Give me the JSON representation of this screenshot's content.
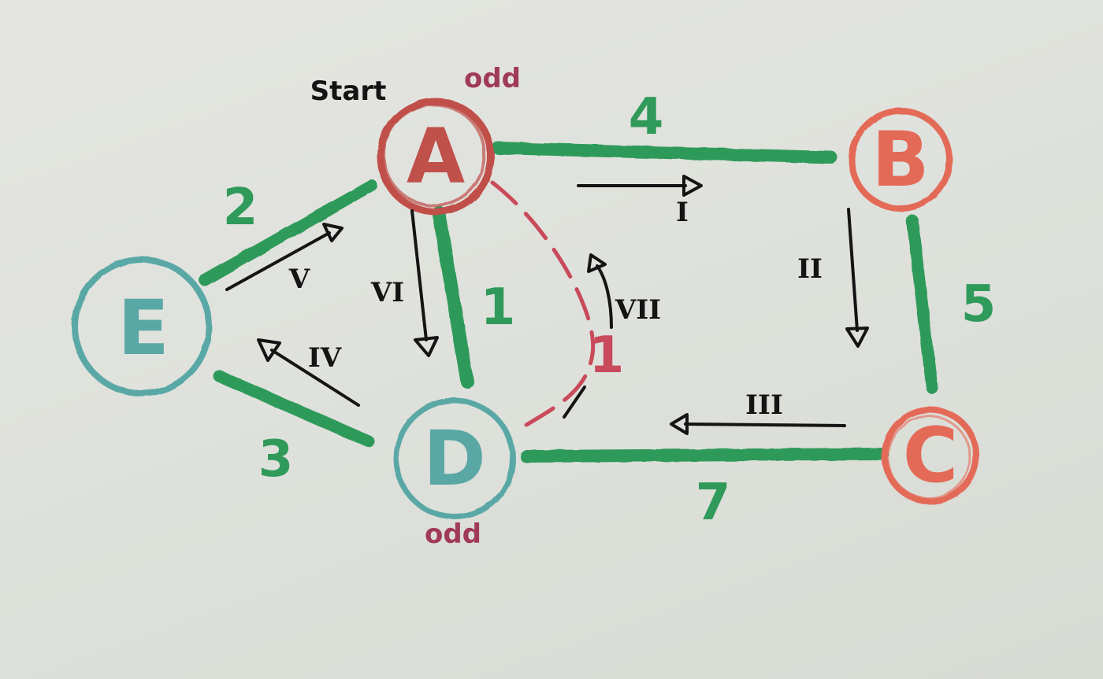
{
  "colors": {
    "paper": "#e1e2dd",
    "edge_green": "#2f9a5a",
    "node_red": "#c0504a",
    "node_salmon": "#e46a58",
    "node_teal": "#5aa8a6",
    "dashed_red": "#c94a5a",
    "ink": "#141414",
    "odd_label": "#a03a5a"
  },
  "labels": {
    "start": "Start",
    "odd_top": "odd",
    "odd_bottom": "odd"
  },
  "nodes": {
    "A": "A",
    "B": "B",
    "C": "C",
    "D": "D",
    "E": "E"
  },
  "edges": {
    "a_b": "4",
    "b_c": "5",
    "c_d": "7",
    "a_d": "1",
    "a_e": "2",
    "e_d": "3",
    "a_d_dashed": "1"
  },
  "steps": {
    "s1": "I",
    "s2": "II",
    "s3": "III",
    "s4": "IV",
    "s5": "V",
    "s6": "VI",
    "s7": "VII"
  }
}
